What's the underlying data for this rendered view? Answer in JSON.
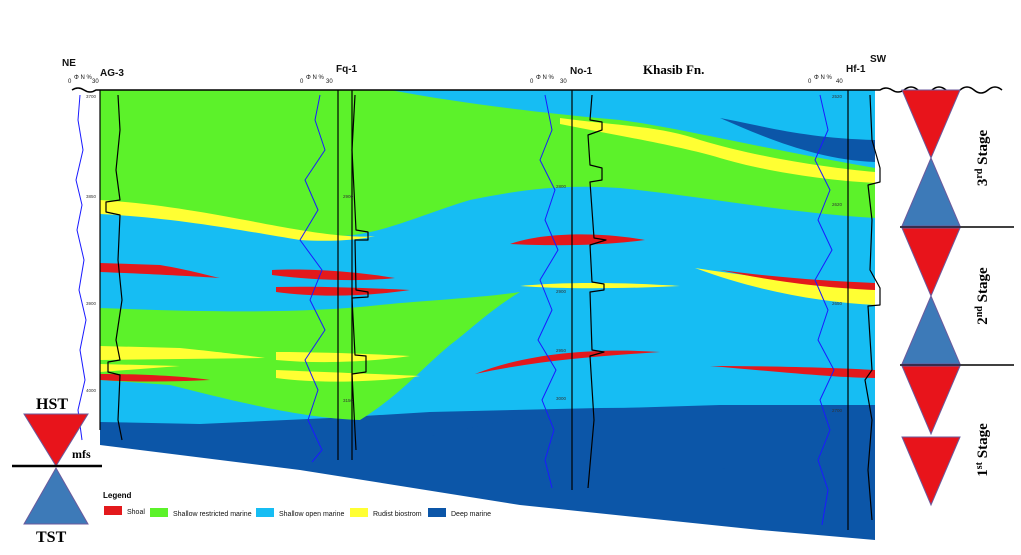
{
  "title": "Khasib Fn.",
  "direction": {
    "left": "NE",
    "right": "SW"
  },
  "wells": [
    {
      "name": "AG-3",
      "axis_min": "0",
      "axis_label": "Φ N %",
      "axis_max": "30",
      "depths": [
        "3700",
        "3850",
        "3900",
        "4000"
      ]
    },
    {
      "name": "Fq-1",
      "axis_min": "0",
      "axis_label": "Φ N %",
      "axis_max": "30",
      "depths": [
        "2900",
        "3150"
      ]
    },
    {
      "name": "No-1",
      "axis_min": "0",
      "axis_label": "Φ N %",
      "axis_max": "30",
      "depths": [
        "2800",
        "2900",
        "2950",
        "3000"
      ]
    },
    {
      "name": "Hf-1",
      "axis_min": "0",
      "axis_label": "Φ N %",
      "axis_max": "40",
      "depths": [
        "2520",
        "2620",
        "2650",
        "2700"
      ]
    }
  ],
  "legend": {
    "title": "Legend",
    "items": [
      {
        "label": "Shoal",
        "color": "#e3191c"
      },
      {
        "label": "Shallow restricted marine",
        "color": "#5cf22a"
      },
      {
        "label": "Shallow open marine",
        "color": "#16bdf3"
      },
      {
        "label": "Rudist biostrom",
        "color": "#ffff33"
      },
      {
        "label": "Deep marine",
        "color": "#0c56a8"
      }
    ]
  },
  "stages": [
    {
      "label_main": "3",
      "label_sup": "rd",
      "label_word": " Stage"
    },
    {
      "label_main": "2",
      "label_sup": "nd",
      "label_word": " Stage"
    },
    {
      "label_main": "1",
      "label_sup": "st",
      "label_word": " Stage"
    }
  ],
  "key": {
    "top": "HST",
    "middle": "mfs",
    "bottom": "TST"
  },
  "colors": {
    "hst": "#e8141b",
    "tst": "#3d7ab8",
    "outline": "#6b5a9c"
  }
}
